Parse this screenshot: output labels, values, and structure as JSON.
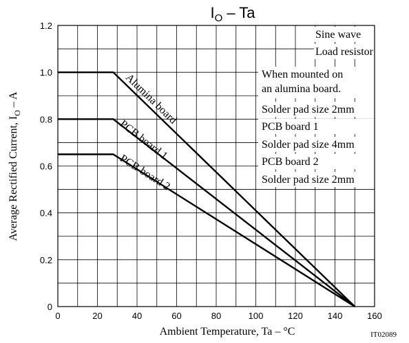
{
  "chart_data": {
    "type": "line",
    "title": {
      "symbol": "I",
      "subscript": "O",
      "rest": " – Ta"
    },
    "xlabel": "Ambient Temperature,  Ta  –  °C",
    "ylabel": {
      "main": "Average Rectified Current,  I",
      "subscript": "O",
      "unit": "  –  A"
    },
    "xlim": [
      0,
      160
    ],
    "ylim": [
      0,
      1.2
    ],
    "x_ticks": [
      {
        "value": 0,
        "label": "0"
      },
      {
        "value": 20,
        "label": "20"
      },
      {
        "value": 40,
        "label": "40"
      },
      {
        "value": 60,
        "label": "60"
      },
      {
        "value": 80,
        "label": "80"
      },
      {
        "value": 100,
        "label": "100"
      },
      {
        "value": 120,
        "label": "120"
      },
      {
        "value": 140,
        "label": "140"
      },
      {
        "value": 160,
        "label": "160"
      }
    ],
    "y_ticks": [
      {
        "value": 0,
        "label": "0"
      },
      {
        "value": 0.2,
        "label": "0.2"
      },
      {
        "value": 0.4,
        "label": "0.4"
      },
      {
        "value": 0.6,
        "label": "0.6"
      },
      {
        "value": 0.8,
        "label": "0.8"
      },
      {
        "value": 1.0,
        "label": "1.0"
      },
      {
        "value": 1.2,
        "label": "1.2"
      }
    ],
    "x_grid_step": 10,
    "y_grid_step": 0.1,
    "grid": true,
    "series": [
      {
        "name": "Alumina board",
        "x": [
          0,
          28,
          150
        ],
        "y": [
          1.0,
          1.0,
          0
        ]
      },
      {
        "name": "PCB board 1",
        "x": [
          0,
          28,
          150
        ],
        "y": [
          0.8,
          0.8,
          0
        ]
      },
      {
        "name": "PCB board 2",
        "x": [
          0,
          28,
          150
        ],
        "y": [
          0.65,
          0.65,
          0
        ]
      }
    ],
    "notes": [
      "Sine wave",
      "Load resistor",
      "When mounted on",
      "an alumina board.",
      "Solder pad size 2mm",
      "PCB board 1",
      "Solder pad size 4mm",
      "PCB board 2",
      "Solder pad size 2mm"
    ],
    "figure_code": "IT02089"
  }
}
